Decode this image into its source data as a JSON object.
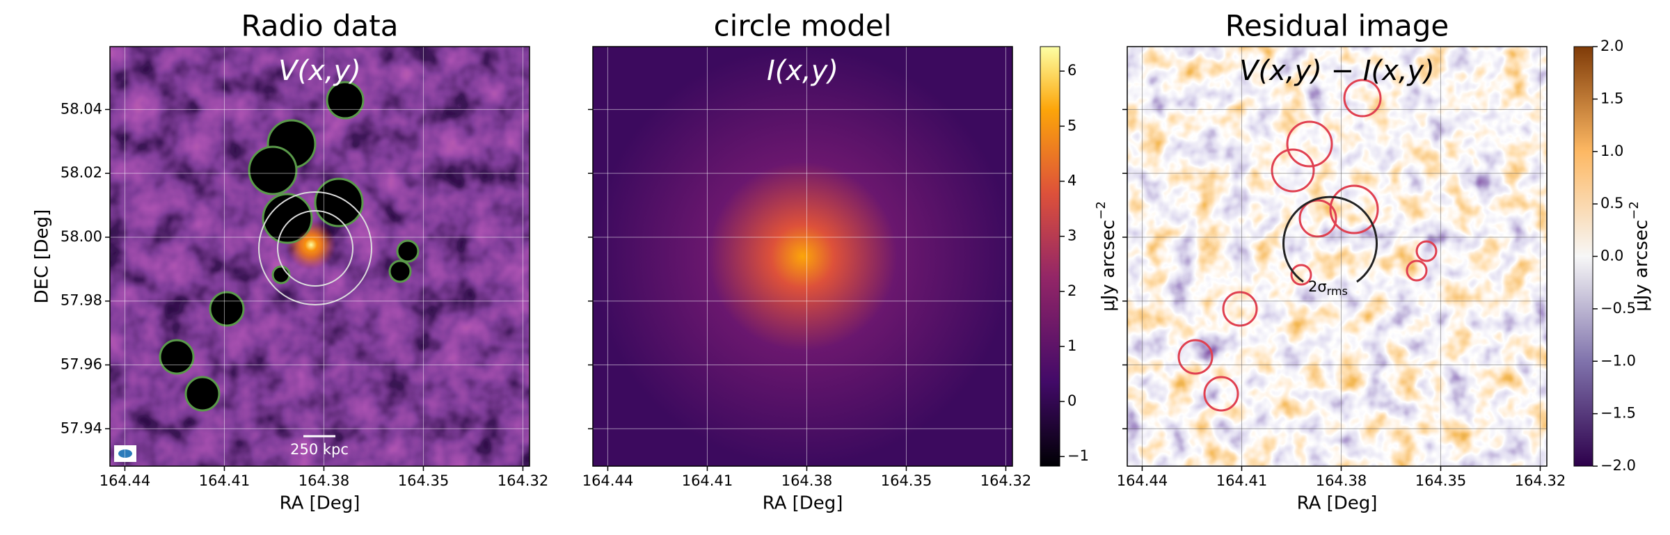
{
  "chart_data": [
    {
      "type": "heatmap",
      "title": "Radio data",
      "annotation": "V(x,y)",
      "scalebar_label": "250 kpc",
      "xlabel": "RA [Deg]",
      "ylabel": "DEC [Deg]",
      "xlim": [
        164.4445,
        164.318
      ],
      "xticks": [
        164.44,
        164.41,
        164.38,
        164.35,
        164.32
      ],
      "ylim": [
        57.9283,
        58.0597
      ],
      "yticks": [
        58.04,
        58.02,
        {
          "value": 58.0,
          "label": "58.00"
        },
        57.98,
        57.96,
        57.94
      ],
      "grid": true,
      "grid_color": "#ffffff"
    },
    {
      "type": "heatmap",
      "title": "circle model",
      "annotation": "I(x,y)",
      "xlabel": "RA [Deg]",
      "sharey": true,
      "xlim": [
        164.4445,
        164.318
      ],
      "xticks": [
        164.44,
        164.41,
        164.38,
        164.35,
        164.32
      ],
      "grid": true,
      "grid_color": "#ffffff",
      "colorbar": {
        "label": "μJy arcsec",
        "label_power": "−2",
        "lim": [
          -1.174,
          6.445
        ],
        "ticks": [
          {
            "value": -1,
            "label": "−1"
          },
          0,
          1,
          2,
          3,
          4,
          5,
          6
        ]
      }
    },
    {
      "type": "heatmap",
      "title": "Residual image",
      "annotation": "V(x,y) − I(x,y)",
      "arc_label": "2σ",
      "arc_label_subscript": "rms",
      "xlabel": "RA [Deg]",
      "sharey": true,
      "xlim": [
        164.4445,
        164.318
      ],
      "xticks": [
        164.44,
        164.41,
        164.38,
        164.35,
        164.32
      ],
      "grid": true,
      "grid_color": "#555555",
      "colorbar": {
        "label": "μJy arcsec",
        "label_power": "−2",
        "lim": [
          -2,
          2
        ],
        "ticks": [
          {
            "value": -2,
            "label": "−2.0"
          },
          {
            "value": -1.5,
            "label": "−1.5"
          },
          {
            "value": -1,
            "label": "−1.0"
          },
          {
            "value": -0.5,
            "label": "−0.5"
          },
          {
            "value": 0,
            "label": "0.0"
          },
          {
            "value": 0.5,
            "label": "0.5"
          },
          {
            "value": 1,
            "label": "1.0"
          },
          {
            "value": 1.5,
            "label": "1.5"
          },
          {
            "value": 2,
            "label": "2.0"
          }
        ]
      }
    }
  ]
}
